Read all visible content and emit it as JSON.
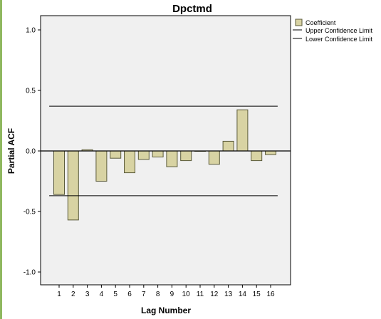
{
  "chart_data": {
    "type": "bar",
    "title": "Dpctmd",
    "xlabel": "Lag Number",
    "ylabel": "Partial ACF",
    "categories": [
      "1",
      "2",
      "3",
      "4",
      "5",
      "6",
      "7",
      "8",
      "9",
      "10",
      "11",
      "12",
      "13",
      "14",
      "15",
      "16"
    ],
    "series": [
      {
        "name": "Coefficient",
        "values": [
          -0.36,
          -0.57,
          0.01,
          -0.25,
          -0.06,
          -0.18,
          -0.07,
          -0.05,
          -0.13,
          -0.08,
          0.0,
          -0.11,
          0.08,
          0.34,
          -0.08,
          -0.03
        ]
      }
    ],
    "confidence_limits": {
      "upper": {
        "name": "Upper Confidence Limit",
        "value": 0.37
      },
      "lower": {
        "name": "Lower Confidence Limit",
        "value": -0.37
      }
    },
    "ylim": [
      -1.1,
      1.1
    ],
    "yticks": [
      "1.0",
      "0.5",
      "0.0",
      "-0.5",
      "-1.0"
    ],
    "legend_position": "right",
    "grid": false,
    "colors": {
      "plot_background": "#f0f0f0",
      "bar_fill": "#d8d3a3",
      "bar_stroke": "#5a5a3a",
      "line": "#000000"
    }
  }
}
